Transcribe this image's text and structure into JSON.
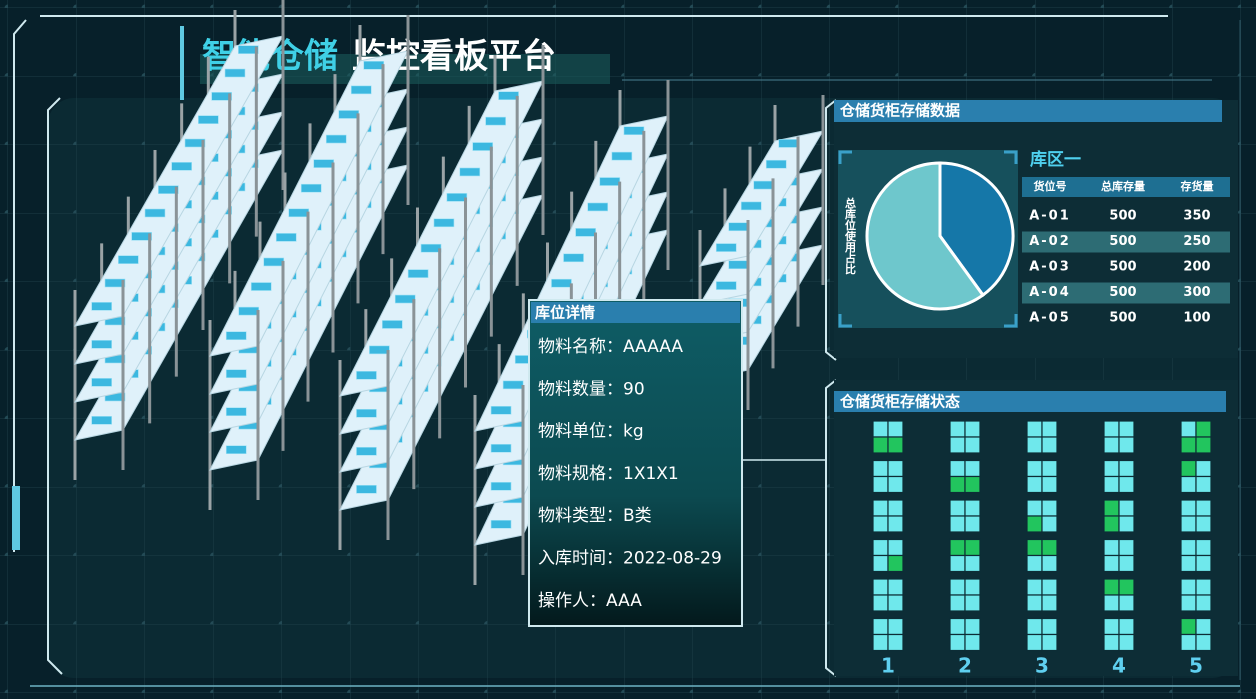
{
  "header": {
    "title_highlight": "智能仓储",
    "title_rest": "监控看板平台"
  },
  "popup": {
    "title": "库位详情",
    "fields": [
      {
        "label": "物料名称：",
        "value": "AAAAA"
      },
      {
        "label": "物料数量：",
        "value": "90"
      },
      {
        "label": "物料单位：",
        "value": "kg"
      },
      {
        "label": "物料规格：",
        "value": "1X1X1"
      },
      {
        "label": "物料类型：",
        "value": "B类"
      },
      {
        "label": "入库时间：",
        "value": "2022-08-29"
      },
      {
        "label": "操作人：",
        "value": "AAA"
      }
    ]
  },
  "storage_panel": {
    "title": "仓储货柜存储数据",
    "zone": "库区一"
  },
  "chart_data": {
    "type": "pie",
    "title": "总库位使用占比",
    "values": [
      40,
      60
    ],
    "colors": [
      "#1577a8",
      "#6ec7cc"
    ]
  },
  "table": {
    "columns": [
      "货位号",
      "总库存量",
      "存货量"
    ],
    "rows": [
      [
        "A-01",
        "500",
        "350"
      ],
      [
        "A-02",
        "500",
        "250"
      ],
      [
        "A-03",
        "500",
        "200"
      ],
      [
        "A-04",
        "500",
        "300"
      ],
      [
        "A-05",
        "500",
        "100"
      ]
    ]
  },
  "status_panel": {
    "title": "仓储货柜存储状态",
    "columns": [
      "1",
      "2",
      "3",
      "4",
      "5"
    ],
    "cells": [
      [
        [
          0,
          0,
          1,
          1
        ],
        [
          0,
          0,
          0,
          0
        ],
        [
          0,
          0,
          0,
          0
        ],
        [
          0,
          0,
          0,
          1
        ],
        [
          0,
          0,
          0,
          0
        ],
        [
          0,
          0,
          0,
          0
        ]
      ],
      [
        [
          0,
          0,
          0,
          0
        ],
        [
          0,
          0,
          1,
          1
        ],
        [
          0,
          0,
          0,
          0
        ],
        [
          1,
          1,
          0,
          0
        ],
        [
          0,
          0,
          0,
          0
        ],
        [
          0,
          0,
          0,
          0
        ]
      ],
      [
        [
          0,
          0,
          0,
          0
        ],
        [
          0,
          0,
          0,
          0
        ],
        [
          0,
          0,
          1,
          0
        ],
        [
          1,
          1,
          0,
          0
        ],
        [
          0,
          0,
          0,
          0
        ],
        [
          0,
          0,
          0,
          0
        ]
      ],
      [
        [
          0,
          0,
          0,
          0
        ],
        [
          0,
          0,
          0,
          0
        ],
        [
          1,
          0,
          1,
          0
        ],
        [
          0,
          0,
          0,
          0
        ],
        [
          1,
          1,
          0,
          0
        ],
        [
          0,
          0,
          0,
          0
        ]
      ],
      [
        [
          0,
          1,
          1,
          1
        ],
        [
          1,
          0,
          0,
          0
        ],
        [
          0,
          0,
          0,
          0
        ],
        [
          0,
          0,
          0,
          0
        ],
        [
          0,
          0,
          0,
          0
        ],
        [
          1,
          0,
          0,
          0
        ]
      ]
    ]
  }
}
